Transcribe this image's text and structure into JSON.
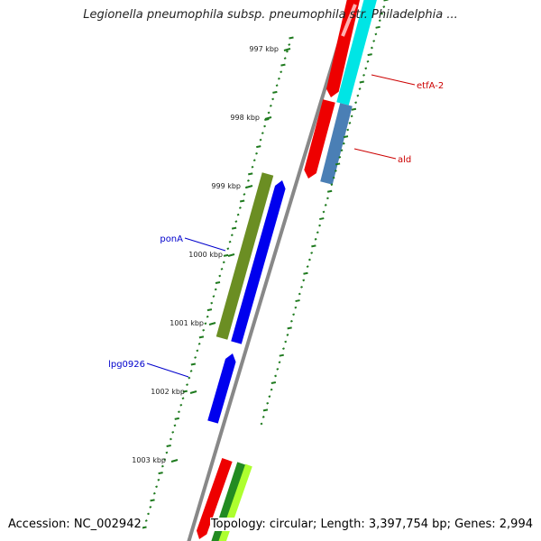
{
  "title": "Legionella pneumophila subsp. pneumophila str. Philadelphia ...",
  "footer": {
    "accession": "Accession: NC_002942",
    "summary": "Topology: circular; Length: 3,397,754 bp; Genes: 2,994"
  },
  "ticks": [
    {
      "label": "997 kbp"
    },
    {
      "label": "998 kbp"
    },
    {
      "label": "999 kbp"
    },
    {
      "label": "1000 kbp"
    },
    {
      "label": "1001 kbp"
    },
    {
      "label": "1002 kbp"
    },
    {
      "label": "1003 kbp"
    }
  ],
  "gene_labels": [
    {
      "name": "etfA-2",
      "color": "#cc0000"
    },
    {
      "name": "ald",
      "color": "#cc0000"
    },
    {
      "name": "ponA",
      "color": "#0000cc"
    },
    {
      "name": "lpg0926",
      "color": "#0000cc"
    }
  ],
  "colors": {
    "backbone": "#888888",
    "tick": "#1e7a1e",
    "cds_red": "#ee0000",
    "cds_cyan": "#00e5e5",
    "cds_steel": "#4a7fb5",
    "cds_olive": "#6b8e23",
    "cds_blue": "#0000ee",
    "cds_green": "#228b22",
    "cds_lime": "#adff2f"
  }
}
